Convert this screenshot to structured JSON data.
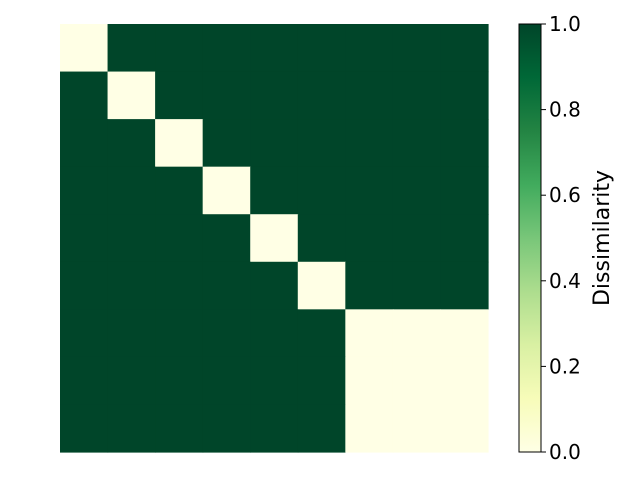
{
  "chart_data": {
    "type": "heatmap",
    "title": "",
    "xlabel": "",
    "ylabel": "",
    "matrix": [
      [
        0,
        1,
        1,
        1,
        1,
        1,
        1,
        1,
        1
      ],
      [
        1,
        0,
        1,
        1,
        1,
        1,
        1,
        1,
        1
      ],
      [
        1,
        1,
        0,
        1,
        1,
        1,
        1,
        1,
        1
      ],
      [
        1,
        1,
        1,
        0,
        1,
        1,
        1,
        1,
        1
      ],
      [
        1,
        1,
        1,
        1,
        0,
        1,
        1,
        1,
        1
      ],
      [
        1,
        1,
        1,
        1,
        1,
        0,
        1,
        1,
        1
      ],
      [
        1,
        1,
        1,
        1,
        1,
        1,
        0,
        0,
        0
      ],
      [
        1,
        1,
        1,
        1,
        1,
        1,
        0,
        0,
        0
      ],
      [
        1,
        1,
        1,
        1,
        1,
        1,
        0,
        0,
        0
      ]
    ],
    "colorbar": {
      "label": "Dissimilarity",
      "vmin": 0.0,
      "vmax": 1.0,
      "ticks": [
        "0.0",
        "0.2",
        "0.4",
        "0.6",
        "0.8",
        "1.0"
      ],
      "colormap": "YlGn",
      "low_color": "#ffffe5",
      "high_color": "#004529"
    },
    "axis_ticks_visible": false,
    "grid": false
  }
}
